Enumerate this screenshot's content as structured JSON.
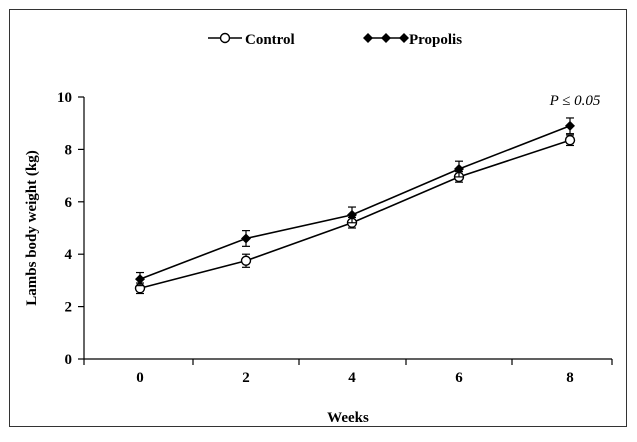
{
  "chart_data": {
    "type": "line",
    "title": "",
    "xlabel": "Weeks",
    "ylabel": "Lambs body weight (kg)",
    "x": [
      0,
      2,
      4,
      6,
      8
    ],
    "x_ticks": [
      "0",
      "2",
      "4",
      "6",
      "8"
    ],
    "y_ticks": [
      "0",
      "2",
      "4",
      "6",
      "8",
      "10"
    ],
    "ylim": [
      0,
      10
    ],
    "grid": false,
    "legend_position": "top",
    "annotation": "P ≤ 0.05",
    "series": [
      {
        "name": "Control",
        "marker": "open-circle",
        "color": "#000000",
        "values": [
          2.7,
          3.75,
          5.2,
          6.95,
          8.35
        ],
        "errors": [
          0.2,
          0.25,
          0.2,
          0.2,
          0.2
        ]
      },
      {
        "name": "Propolis",
        "marker": "filled-diamond",
        "color": "#000000",
        "values": [
          3.05,
          4.6,
          5.5,
          7.25,
          8.9
        ],
        "errors": [
          0.25,
          0.3,
          0.3,
          0.3,
          0.3
        ]
      }
    ]
  }
}
